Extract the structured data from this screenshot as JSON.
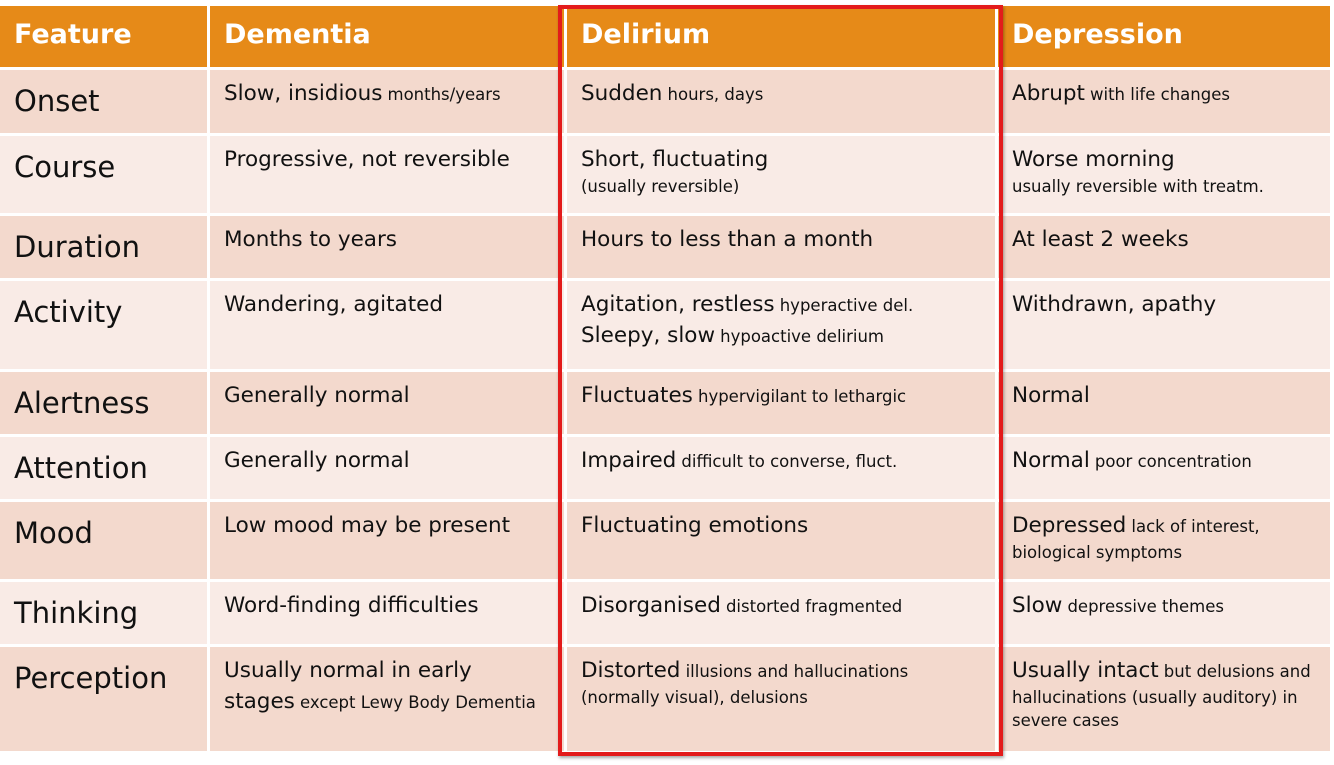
{
  "colors": {
    "header_bg": "#E68A18",
    "row_odd_bg": "#F3D9CD",
    "row_even_bg": "#F9EBE6",
    "highlight_border": "#E31B1B"
  },
  "headers": [
    "Feature",
    "Dementia",
    "Delirium",
    "Depression"
  ],
  "rows": [
    {
      "feature": "Onset",
      "dementia": {
        "main": "Slow, insidious",
        "sub": "months/years"
      },
      "delirium": {
        "main": "Sudden",
        "sub": "hours, days"
      },
      "depression": {
        "main": "Abrupt",
        "sub": "with life changes"
      }
    },
    {
      "feature": "Course",
      "dementia": {
        "main": "Progressive, not reversible"
      },
      "delirium": {
        "main": "Short, fluctuating",
        "sub": "(usually reversible)"
      },
      "depression": {
        "main": "Worse morning",
        "sub": "usually reversible with treatm."
      }
    },
    {
      "feature": "Duration",
      "dementia": {
        "main": "Months to years"
      },
      "delirium": {
        "main": "Hours to less than a month"
      },
      "depression": {
        "main": "At least 2 weeks"
      }
    },
    {
      "feature": "Activity",
      "dementia": {
        "main": "Wandering, agitated"
      },
      "delirium": {
        "main": "Agitation, restless",
        "sub": "hyperactive del.",
        "main2": "Sleepy, slow",
        "sub2": "hypoactive delirium"
      },
      "depression": {
        "main": "Withdrawn, apathy"
      }
    },
    {
      "feature": "Alertness",
      "dementia": {
        "main": "Generally normal"
      },
      "delirium": {
        "main": "Fluctuates",
        "sub": "hypervigilant to lethargic"
      },
      "depression": {
        "main": "Normal"
      }
    },
    {
      "feature": "Attention",
      "dementia": {
        "main": "Generally normal"
      },
      "delirium": {
        "main": "Impaired",
        "sub": "difficult to converse, fluct."
      },
      "depression": {
        "main": "Normal",
        "sub": "poor concentration"
      }
    },
    {
      "feature": "Mood",
      "dementia": {
        "main": "Low mood may be present"
      },
      "delirium": {
        "main": "Fluctuating emotions"
      },
      "depression": {
        "main": "Depressed",
        "sub": "lack of interest,",
        "sub_line2": "biological symptoms"
      }
    },
    {
      "feature": "Thinking",
      "dementia": {
        "main": "Word-finding difficulties"
      },
      "delirium": {
        "main": "Disorganised",
        "sub": "distorted fragmented"
      },
      "depression": {
        "main": "Slow",
        "sub": "depressive themes"
      }
    },
    {
      "feature": "Perception",
      "dementia": {
        "main": "Usually normal in early",
        "main_line2": "stages",
        "sub": "except Lewy Body Dementia"
      },
      "delirium": {
        "main": "Distorted",
        "sub": "illusions and hallucinations",
        "sub_line2": "(normally visual), delusions"
      },
      "depression": {
        "main": "Usually intact",
        "sub": "but delusions and",
        "sub_line2": "hallucinations (usually auditory) in",
        "sub_line3": "severe cases"
      }
    }
  ]
}
